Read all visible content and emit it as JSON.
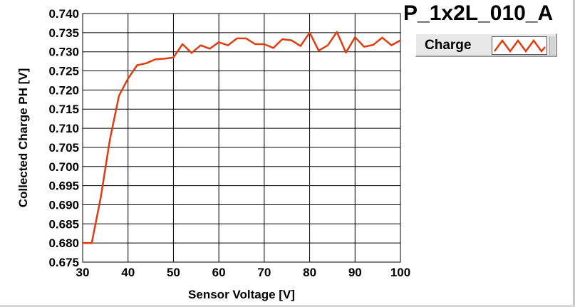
{
  "chart_data": {
    "type": "line",
    "title": "P_1x2L_010_A",
    "xlabel": "Sensor Voltage [V]",
    "ylabel": "Collected Charge PH [V]",
    "xlim": [
      30,
      100
    ],
    "ylim": [
      0.675,
      0.74
    ],
    "x_ticks": [
      "30",
      "40",
      "50",
      "60",
      "70",
      "80",
      "90",
      "100"
    ],
    "y_ticks": [
      "0.675",
      "0.680",
      "0.685",
      "0.690",
      "0.695",
      "0.700",
      "0.705",
      "0.710",
      "0.715",
      "0.720",
      "0.725",
      "0.730",
      "0.735",
      "0.740"
    ],
    "grid": true,
    "legend_position": "top-right",
    "series": [
      {
        "name": "Charge",
        "color": "#e03c10",
        "x": [
          30,
          32,
          34,
          36,
          38,
          40,
          42,
          44,
          46,
          48,
          50,
          52,
          54,
          56,
          58,
          60,
          62,
          64,
          66,
          68,
          70,
          72,
          74,
          76,
          78,
          80,
          82,
          84,
          86,
          88,
          90,
          92,
          94,
          96,
          98,
          100
        ],
        "y": [
          0.68,
          0.68,
          0.692,
          0.707,
          0.7185,
          0.723,
          0.7265,
          0.727,
          0.728,
          0.7282,
          0.7285,
          0.732,
          0.7297,
          0.7317,
          0.7308,
          0.7325,
          0.7317,
          0.7335,
          0.7335,
          0.732,
          0.732,
          0.731,
          0.7333,
          0.733,
          0.7315,
          0.735,
          0.7303,
          0.7317,
          0.7352,
          0.7298,
          0.7338,
          0.7313,
          0.7318,
          0.7337,
          0.7317,
          0.733
        ]
      }
    ]
  }
}
